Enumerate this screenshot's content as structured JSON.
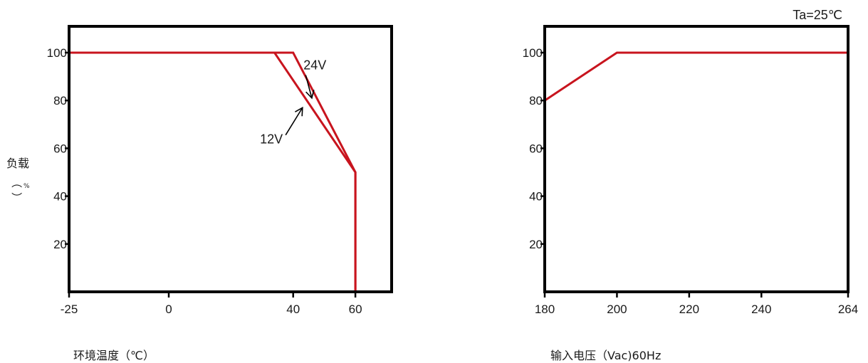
{
  "chart_data": [
    {
      "type": "line",
      "xlabel": "环境温度（℃）",
      "ylabel": {
        "main": "负载",
        "paren_open": "（",
        "unit": "%",
        "paren_close": "）"
      },
      "xlim": [
        -25,
        64
      ],
      "ylim": [
        0,
        111
      ],
      "x_ticks": [
        -25,
        0,
        40,
        60
      ],
      "y_ticks": [
        20,
        40,
        60,
        80,
        100
      ],
      "grid": false,
      "series": [
        {
          "name": "24V",
          "color": "#c8141e",
          "x": [
            -25,
            40,
            60,
            60
          ],
          "y": [
            100,
            100,
            50,
            0
          ]
        },
        {
          "name": "12V",
          "color": "#c8141e",
          "x": [
            -25,
            34,
            60,
            60
          ],
          "y": [
            100,
            100,
            50,
            0
          ]
        }
      ],
      "annotations": [
        {
          "text": "24V",
          "label_at": [
            47,
            93
          ],
          "arrow_to": [
            46,
            81
          ]
        },
        {
          "text": "12V",
          "label_at": [
            33,
            62
          ],
          "arrow_to": [
            43,
            77
          ]
        }
      ]
    },
    {
      "type": "line",
      "title": "Ta=25℃",
      "xlabel": "输入电压（Vac)60Hz",
      "ylabel": "",
      "xlim": [
        180,
        264
      ],
      "ylim": [
        0,
        111
      ],
      "x_ticks": [
        180,
        200,
        220,
        240,
        264
      ],
      "y_ticks": [
        20,
        40,
        60,
        80,
        100
      ],
      "grid": false,
      "series": [
        {
          "color": "#c8141e",
          "x": [
            180,
            200,
            264
          ],
          "y": [
            80,
            100,
            100
          ]
        }
      ]
    }
  ]
}
